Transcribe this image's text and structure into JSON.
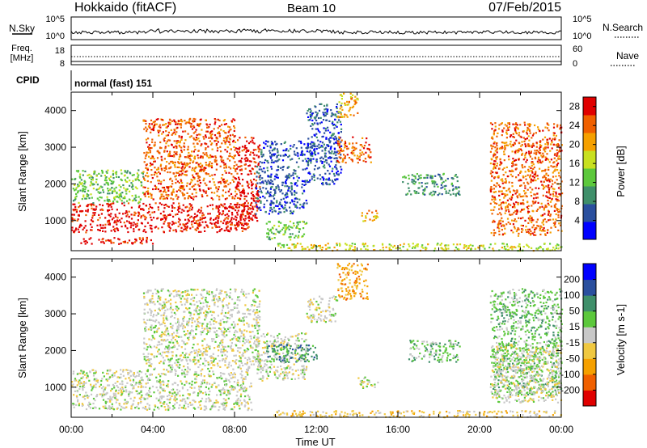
{
  "header": {
    "station": "Hokkaido (fitACF)",
    "beam": "Beam 10",
    "date": "07/Feb/2015"
  },
  "params": {
    "noise_left_label": "N.Sky",
    "noise_right_label": "N.Search",
    "noise_ticks_left": [
      "10^5",
      "10^0"
    ],
    "noise_ticks_right": [
      "10^5",
      "10^0"
    ],
    "freq_label_1": "Freq.",
    "freq_label_2": "[MHz]",
    "freq_ticks": [
      "18",
      "8"
    ],
    "nave_label": "Nave",
    "nave_ticks": [
      "60",
      "0"
    ],
    "cpid_label": "CPID",
    "cpid_value": "normal (fast) 151"
  },
  "colors": {
    "power": [
      "#0000ff",
      "#2a4f9e",
      "#3f8f6a",
      "#5cc83c",
      "#c8e020",
      "#f5a000",
      "#f06000",
      "#e00000"
    ],
    "velocity": [
      "#e00000",
      "#f06000",
      "#f5a000",
      "#f0c840",
      "#c8c8c8",
      "#5cc83c",
      "#3f8f6a",
      "#2a4f9e",
      "#0000ff"
    ]
  },
  "chart_data": [
    {
      "type": "heatmap",
      "name": "power",
      "xlabel": "",
      "ylabel": "Slant Range [km]",
      "xlim_hours": [
        0,
        24
      ],
      "ylim": [
        180,
        4500
      ],
      "yticks": [
        "1000",
        "2000",
        "3000",
        "4000"
      ],
      "colorbar_label": "Power [dB]",
      "colorbar_ticks": [
        "4",
        "8",
        "12",
        "16",
        "20",
        "24",
        "28"
      ],
      "colorbar_range": [
        0,
        30
      ],
      "regions": [
        {
          "t": [
            0.0,
            8.8
          ],
          "r": [
            700,
            1500
          ],
          "level": 7
        },
        {
          "t": [
            0.3,
            4.0
          ],
          "r": [
            380,
            560
          ],
          "level": 7
        },
        {
          "t": [
            0.0,
            3.5
          ],
          "r": [
            1500,
            2400
          ],
          "level": 3
        },
        {
          "t": [
            3.5,
            8.0
          ],
          "r": [
            1600,
            3800
          ],
          "level": 6
        },
        {
          "t": [
            8.0,
            9.2
          ],
          "r": [
            1000,
            3300
          ],
          "level": 7
        },
        {
          "t": [
            9.0,
            11.5
          ],
          "r": [
            1200,
            2500
          ],
          "level": 1
        },
        {
          "t": [
            9.2,
            12.0
          ],
          "r": [
            2600,
            3200
          ],
          "level": 1
        },
        {
          "t": [
            9.5,
            11.5
          ],
          "r": [
            500,
            1000
          ],
          "level": 3
        },
        {
          "t": [
            11.5,
            13.2
          ],
          "r": [
            2000,
            4200
          ],
          "level": 1
        },
        {
          "t": [
            13.0,
            14.7
          ],
          "r": [
            2600,
            3300
          ],
          "level": 6
        },
        {
          "t": [
            13.0,
            14.0
          ],
          "r": [
            3800,
            4500
          ],
          "level": 5
        },
        {
          "t": [
            14.2,
            15.0
          ],
          "r": [
            1000,
            1300
          ],
          "level": 5
        },
        {
          "t": [
            16.2,
            19.0
          ],
          "r": [
            1700,
            2300
          ],
          "level": 2
        },
        {
          "t": [
            10.0,
            24.0
          ],
          "r": [
            200,
            400
          ],
          "level": 4
        },
        {
          "t": [
            20.5,
            24.0
          ],
          "r": [
            600,
            3700
          ],
          "level": 6
        }
      ]
    },
    {
      "type": "heatmap",
      "name": "velocity",
      "xlabel": "Time UT",
      "ylabel": "Slant Range [km]",
      "xlim_hours": [
        0,
        24
      ],
      "xticks": [
        "00:00",
        "04:00",
        "08:00",
        "12:00",
        "16:00",
        "20:00",
        "00:00"
      ],
      "ylim": [
        180,
        4500
      ],
      "yticks": [
        "1000",
        "2000",
        "3000",
        "4000"
      ],
      "colorbar_label": "Velocity [m s-1]",
      "colorbar_ticks": [
        "-200",
        "-100",
        "-50",
        "-15",
        "15",
        "50",
        "100",
        "200"
      ],
      "regions": [
        {
          "t": [
            0.0,
            8.8
          ],
          "r": [
            400,
            1500
          ],
          "level": 4
        },
        {
          "t": [
            3.5,
            9.2
          ],
          "r": [
            1500,
            3700
          ],
          "level": 4
        },
        {
          "t": [
            9.0,
            11.5
          ],
          "r": [
            1200,
            2500
          ],
          "level": 4
        },
        {
          "t": [
            9.5,
            12.0
          ],
          "r": [
            1700,
            2200
          ],
          "level": 6
        },
        {
          "t": [
            11.5,
            13.0
          ],
          "r": [
            2800,
            3500
          ],
          "level": 4
        },
        {
          "t": [
            13.0,
            14.5
          ],
          "r": [
            3400,
            4400
          ],
          "level": 2
        },
        {
          "t": [
            14.0,
            15.0
          ],
          "r": [
            1000,
            1300
          ],
          "level": 4
        },
        {
          "t": [
            16.5,
            19.0
          ],
          "r": [
            1700,
            2300
          ],
          "level": 5
        },
        {
          "t": [
            20.5,
            24.0
          ],
          "r": [
            800,
            3700
          ],
          "level": 5
        },
        {
          "t": [
            20.5,
            24.0
          ],
          "r": [
            600,
            2200
          ],
          "level": 4
        },
        {
          "t": [
            9.8,
            24.0
          ],
          "r": [
            200,
            380
          ],
          "level": 3
        }
      ]
    }
  ]
}
